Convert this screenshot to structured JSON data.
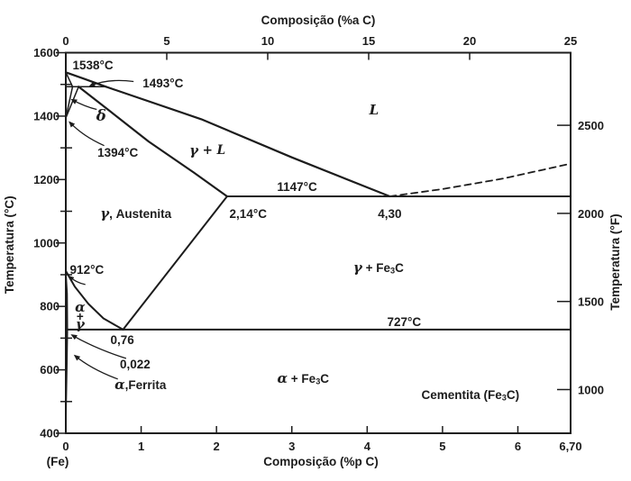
{
  "figure": {
    "background": "#ffffff",
    "ink": "#1c1c1c"
  },
  "chart_data": {
    "type": "line",
    "kind": "phase-diagram",
    "axes": {
      "top": {
        "label": "Composição (%a C)",
        "range": [
          0,
          25
        ],
        "ticks": [
          0,
          5,
          10,
          15,
          20,
          25
        ],
        "tick_labels": [
          "0",
          "5",
          "10",
          "15",
          "20",
          "25"
        ]
      },
      "bottom": {
        "label": "Composição (%p C)",
        "range": [
          0,
          6.7
        ],
        "ticks": [
          0,
          1,
          2,
          3,
          4,
          5,
          6,
          6.7
        ],
        "tick_labels": [
          "0",
          "1",
          "2",
          "3",
          "4",
          "5",
          "6",
          "6,70"
        ],
        "origin_label": "(Fe)"
      },
      "left": {
        "label": "Temperatura (°C)",
        "range": [
          400,
          1600
        ],
        "ticks": [
          1600,
          1400,
          1200,
          1000,
          800,
          600,
          400
        ],
        "tick_labels": [
          "1600",
          "1400",
          "1200",
          "1000",
          "800",
          "600",
          "400"
        ],
        "minor_ticks": [
          1500,
          1300,
          1100,
          900,
          700,
          500
        ]
      },
      "right": {
        "label": "Temperatura (°F)",
        "ticks_f": [
          2500,
          2000,
          1500,
          1000
        ],
        "tick_labels": [
          "2500",
          "2000",
          "1500",
          "1000"
        ]
      }
    },
    "invariant_points": {
      "melting_point_fe_c": 1538,
      "peritectic_temperature_c": 1493,
      "delta_to_gamma_transition_c": 1394,
      "eutectic_temperature_c": 1147,
      "gamma_to_alpha_transition_c": 912,
      "eutectoid_temperature_c": 727,
      "max_alpha_solubility_wtpct": 0.022,
      "eutectoid_composition_wtpct": 0.76,
      "max_gamma_solubility_wtpct": 2.14,
      "eutectic_composition_wtpct": 4.3,
      "cementite_composition_wtpct": 6.7
    },
    "boundaries": [
      {
        "name": "liquidus-delta",
        "w": 2.2,
        "dashed": false,
        "points": [
          [
            0,
            1538
          ],
          [
            0.25,
            1517
          ],
          [
            0.53,
            1493
          ]
        ]
      },
      {
        "name": "liquidus",
        "w": 2.2,
        "dashed": false,
        "points": [
          [
            0.53,
            1493
          ],
          [
            1.8,
            1390
          ],
          [
            3.0,
            1270
          ],
          [
            4.3,
            1147
          ]
        ]
      },
      {
        "name": "liquidus-extension",
        "w": 1.8,
        "dashed": true,
        "points": [
          [
            4.3,
            1147
          ],
          [
            5.0,
            1170
          ],
          [
            5.8,
            1203
          ],
          [
            6.7,
            1250
          ]
        ]
      },
      {
        "name": "peritectic-line-1493",
        "w": 1.5,
        "dashed": false,
        "points": [
          [
            0,
            1493
          ],
          [
            0.53,
            1493
          ]
        ]
      },
      {
        "name": "delta-solidus",
        "w": 1.5,
        "dashed": false,
        "points": [
          [
            0,
            1538
          ],
          [
            0.09,
            1493
          ]
        ]
      },
      {
        "name": "delta-gamma-boundary",
        "w": 1.5,
        "dashed": false,
        "points": [
          [
            0.09,
            1493
          ],
          [
            0,
            1394
          ]
        ]
      },
      {
        "name": "gamma-upper-boundary",
        "w": 1.5,
        "dashed": false,
        "points": [
          [
            0.17,
            1493
          ],
          [
            0,
            1394
          ]
        ]
      },
      {
        "name": "gamma-solidus",
        "w": 2.2,
        "dashed": false,
        "points": [
          [
            0.17,
            1493
          ],
          [
            0.6,
            1413
          ],
          [
            1.1,
            1320
          ],
          [
            1.7,
            1222
          ],
          [
            2.14,
            1147
          ]
        ]
      },
      {
        "name": "eutectic-line-1147",
        "w": 2.0,
        "dashed": false,
        "points": [
          [
            2.14,
            1147
          ],
          [
            6.7,
            1147
          ]
        ]
      },
      {
        "name": "acm",
        "w": 2.0,
        "dashed": false,
        "points": [
          [
            0.76,
            727
          ],
          [
            2.14,
            1147
          ]
        ]
      },
      {
        "name": "a3",
        "w": 2.0,
        "dashed": false,
        "points": [
          [
            0,
            912
          ],
          [
            0.12,
            862
          ],
          [
            0.3,
            808
          ],
          [
            0.5,
            762
          ],
          [
            0.76,
            727
          ]
        ]
      },
      {
        "name": "alpha-gamma-boundary",
        "w": 1.5,
        "dashed": false,
        "points": [
          [
            0,
            912
          ],
          [
            0.018,
            840
          ],
          [
            0.022,
            727
          ]
        ]
      },
      {
        "name": "alpha-solvus",
        "w": 1.5,
        "dashed": false,
        "points": [
          [
            0.022,
            727
          ],
          [
            0.014,
            610
          ],
          [
            0.005,
            490
          ],
          [
            0,
            400
          ]
        ]
      },
      {
        "name": "eutectoid-line-727",
        "w": 2.0,
        "dashed": false,
        "points": [
          [
            0,
            727
          ],
          [
            6.7,
            727
          ]
        ]
      }
    ],
    "annotations": [
      {
        "id": "label-1538c",
        "text": "1538°C",
        "c": 0.36,
        "t": 1562
      },
      {
        "id": "label-1493c",
        "text": "1493°C",
        "c": 1.29,
        "t": 1505
      },
      {
        "id": "label-delta",
        "text": "δ",
        "c": 0.47,
        "t": 1403,
        "big": true
      },
      {
        "id": "label-1394c",
        "text": "1394°C",
        "c": 0.69,
        "t": 1286
      },
      {
        "id": "label-gamma-l",
        "text": "γ + L",
        "c": 1.88,
        "t": 1292,
        "italic": true
      },
      {
        "id": "label-liquid",
        "text": "L",
        "c": 4.09,
        "t": 1420,
        "italic": true,
        "big": true
      },
      {
        "id": "label-1147c",
        "text": "1147°C",
        "c": 3.07,
        "t": 1178
      },
      {
        "id": "label-214c",
        "text": "2,14°C",
        "c": 2.42,
        "t": 1093
      },
      {
        "id": "label-430",
        "text": "4,30",
        "c": 4.3,
        "t": 1093
      },
      {
        "id": "label-austenita",
        "text": "γ, Austenita",
        "c": 0.93,
        "t": 1093
      },
      {
        "id": "label-gamma-fe3c",
        "text": "γ + Fe_3C",
        "c": 4.15,
        "t": 923
      },
      {
        "id": "label-727c",
        "text": "727°C",
        "c": 4.49,
        "t": 752
      },
      {
        "id": "label-alpha-fe3c",
        "text": "α + Fe_3C",
        "c": 3.15,
        "t": 573
      },
      {
        "id": "label-cementita",
        "text": "Cementita (Fe_3C)",
        "c": 5.37,
        "t": 522
      },
      {
        "id": "label-912c",
        "text": "912°C",
        "c": 0.28,
        "t": 917
      },
      {
        "id": "label-alpha",
        "text": "α",
        "c": 0.19,
        "t": 798
      },
      {
        "id": "label-plus",
        "text": "+",
        "c": 0.19,
        "t": 769
      },
      {
        "id": "label-gamma",
        "text": "γ",
        "c": 0.19,
        "t": 744
      },
      {
        "id": "label-076",
        "text": "0,76",
        "c": 0.75,
        "t": 695
      },
      {
        "id": "label-0022",
        "text": "0,022",
        "c": 0.92,
        "t": 619
      },
      {
        "id": "label-ferrita",
        "text": "α,Ferrita",
        "c": 0.99,
        "t": 553
      }
    ],
    "leader_arrows": [
      {
        "id": "arrow-1493",
        "from": [
          0.9,
          1509
        ],
        "ctrl": [
          0.56,
          1520
        ],
        "to": [
          0.32,
          1495
        ]
      },
      {
        "id": "arrow-delta",
        "from": [
          0.41,
          1421
        ],
        "ctrl": [
          0.26,
          1429
        ],
        "to": [
          0.08,
          1452
        ]
      },
      {
        "id": "arrow-1394",
        "from": [
          0.51,
          1307
        ],
        "ctrl": [
          0.23,
          1336
        ],
        "to": [
          0.05,
          1381
        ]
      },
      {
        "id": "arrow-912",
        "from": [
          0.26,
          869
        ],
        "ctrl": [
          0.14,
          875
        ],
        "to": [
          0.04,
          895
        ]
      },
      {
        "id": "arrow-0022",
        "from": [
          0.8,
          636
        ],
        "ctrl": [
          0.39,
          667
        ],
        "to": [
          0.08,
          710
        ]
      },
      {
        "id": "arrow-ferrita",
        "from": [
          0.69,
          571
        ],
        "ctrl": [
          0.34,
          602
        ],
        "to": [
          0.12,
          645
        ]
      }
    ]
  }
}
